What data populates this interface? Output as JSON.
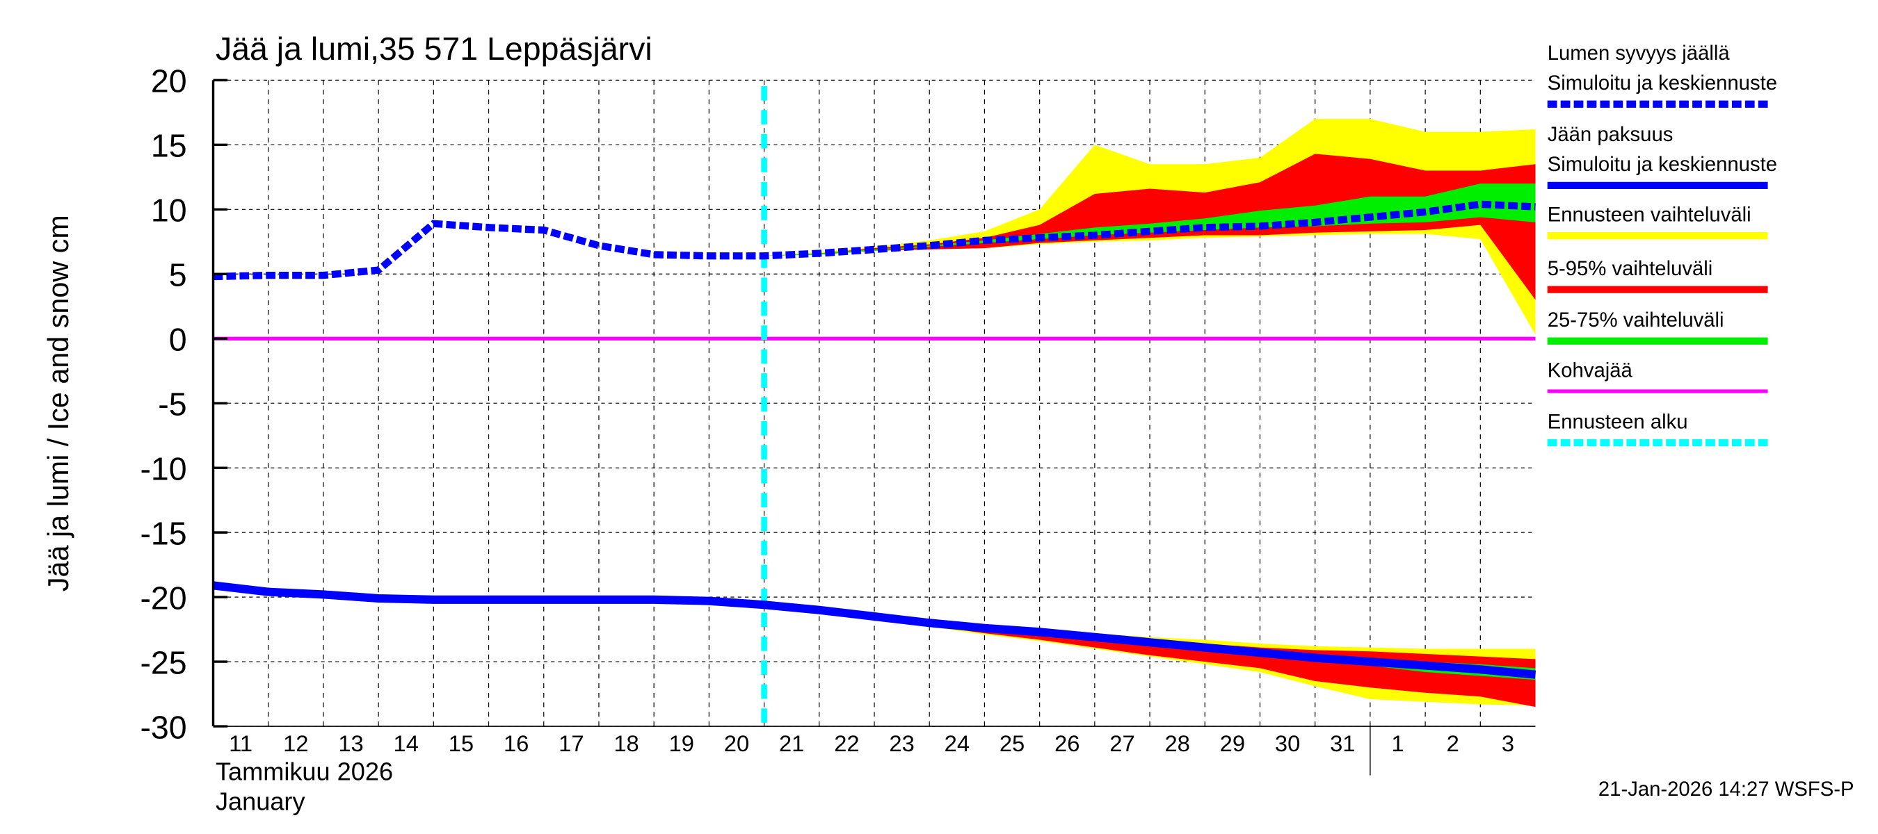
{
  "chart_data": {
    "type": "area",
    "title": "Jää ja lumi,35 571 Leppäsjärvi",
    "ylabel": "Jää ja lumi / Ice and snow    cm",
    "xlabel_fi": "Tammikuu  2026",
    "xlabel_en": "January",
    "ylim": [
      -30,
      20
    ],
    "yticks": [
      "20",
      "15",
      "10",
      "5",
      "0",
      "-5",
      "-10",
      "-15",
      "-20",
      "-25",
      "-30"
    ],
    "xtick_labels": [
      "11",
      "12",
      "13",
      "14",
      "15",
      "16",
      "17",
      "18",
      "19",
      "20",
      "21",
      "22",
      "23",
      "24",
      "25",
      "26",
      "27",
      "28",
      "29",
      "30",
      "31",
      "1",
      "2",
      "3"
    ],
    "grid": true,
    "legend_position": "right",
    "forecast_start": "2026-01-21",
    "x": [
      "2026-01-11",
      "2026-01-12",
      "2026-01-13",
      "2026-01-14",
      "2026-01-15",
      "2026-01-16",
      "2026-01-17",
      "2026-01-18",
      "2026-01-19",
      "2026-01-20",
      "2026-01-21",
      "2026-01-22",
      "2026-01-23",
      "2026-01-24",
      "2026-01-25",
      "2026-01-26",
      "2026-01-27",
      "2026-01-28",
      "2026-01-29",
      "2026-01-30",
      "2026-01-31",
      "2026-02-01",
      "2026-02-02",
      "2026-02-03",
      "2026-02-04"
    ],
    "snow_depth": [
      4.8,
      4.9,
      4.9,
      5.3,
      8.9,
      8.6,
      8.4,
      7.2,
      6.5,
      6.4,
      6.4,
      6.6,
      6.9,
      7.2,
      7.6,
      7.8,
      8.0,
      8.3,
      8.6,
      8.7,
      9.0,
      9.4,
      9.8,
      10.4,
      10.2
    ],
    "ice_thickness": [
      -19.1,
      -19.6,
      -19.8,
      -20.1,
      -20.2,
      -20.2,
      -20.2,
      -20.2,
      -20.2,
      -20.3,
      -20.6,
      -21.0,
      -21.5,
      -22.0,
      -22.4,
      -22.7,
      -23.1,
      -23.5,
      -23.9,
      -24.3,
      -24.7,
      -25.0,
      -25.3,
      -25.6,
      -26.0
    ],
    "snow_bands": {
      "range_upper": [
        6.4,
        6.7,
        7.1,
        7.6,
        8.3,
        10,
        15,
        13.5,
        13.5,
        14,
        17,
        17,
        16,
        16,
        16.2
      ],
      "range_lower": [
        6.4,
        6.5,
        6.8,
        7.0,
        7.0,
        7.3,
        7.5,
        7.6,
        7.8,
        7.9,
        8.0,
        8.1,
        8.1,
        7.7,
        0.3
      ],
      "p95": [
        6.4,
        6.6,
        7.0,
        7.3,
        7.8,
        8.8,
        11.2,
        11.6,
        11.3,
        12.1,
        14.3,
        13.9,
        13,
        13,
        13.5
      ],
      "p5": [
        6.4,
        6.5,
        6.8,
        6.9,
        7.0,
        7.4,
        7.6,
        7.8,
        8.0,
        8.0,
        8.2,
        8.3,
        8.4,
        8.8,
        3.0
      ],
      "p75": [
        6.4,
        6.6,
        6.9,
        7.2,
        7.6,
        8.1,
        8.6,
        8.9,
        9.3,
        9.9,
        10.3,
        11,
        11,
        12,
        12
      ],
      "p25": [
        6.4,
        6.5,
        6.8,
        7.1,
        7.4,
        7.7,
        8,
        8.2,
        8.4,
        8.6,
        8.7,
        8.9,
        9,
        9.4,
        9
      ]
    },
    "ice_bands": {
      "range_upper": [
        -20.6,
        -21.0,
        -21.4,
        -21.8,
        -22.2,
        -22.5,
        -22.8,
        -23.1,
        -23.3,
        -23.6,
        -23.8,
        -23.9,
        -24,
        -24,
        -24
      ],
      "range_lower": [
        -20.6,
        -21.0,
        -21.6,
        -22.3,
        -22.9,
        -23.4,
        -24.0,
        -24.6,
        -25.2,
        -25.8,
        -26.9,
        -27.9,
        -28.1,
        -28.3,
        -28.4
      ],
      "p95": [
        -20.6,
        -21,
        -21.4,
        -21.9,
        -22.3,
        -22.6,
        -23,
        -23.3,
        -23.6,
        -23.9,
        -24.1,
        -24.2,
        -24.4,
        -24.6,
        -24.8
      ],
      "p5": [
        -20.6,
        -21,
        -21.6,
        -22.2,
        -22.8,
        -23.3,
        -23.9,
        -24.5,
        -25.0,
        -25.5,
        -26.5,
        -27,
        -27.4,
        -27.7,
        -28.5
      ],
      "p75": [
        -20.6,
        -21,
        -21.5,
        -21.9,
        -22.3,
        -22.7,
        -23.0,
        -23.4,
        -23.8,
        -24.2,
        -24.6,
        -24.8,
        -25,
        -25.2,
        -25.5
      ],
      "p25": [
        -20.6,
        -21,
        -21.5,
        -22.0,
        -22.4,
        -22.8,
        -23.2,
        -23.6,
        -24.0,
        -24.4,
        -24.9,
        -25.3,
        -25.8,
        -26.1,
        -26.4
      ]
    },
    "ice_slush": 0
  },
  "legend": [
    {
      "label1": "Lumen syvyys jäällä",
      "label2": "Simuloitu ja keskiennuste",
      "color": "#0000ff",
      "style": "dashed"
    },
    {
      "label1": "Jään paksuus",
      "label2": "Simuloitu ja keskiennuste",
      "color": "#0000ff",
      "style": "solid"
    },
    {
      "label1": "Ennusteen vaihteluväli",
      "color": "#ffff00",
      "style": "solid"
    },
    {
      "label1": "5-95% vaihteluväli",
      "color": "#ff0000",
      "style": "solid"
    },
    {
      "label1": "25-75% vaihteluväli",
      "color": "#00ee00",
      "style": "solid"
    },
    {
      "label1": "Kohvajää",
      "color": "#ff00ff",
      "style": "thin"
    },
    {
      "label1": "Ennusteen alku",
      "color": "#00ffff",
      "style": "dashed"
    }
  ],
  "footer": "21-Jan-2026 14:27 WSFS-P"
}
